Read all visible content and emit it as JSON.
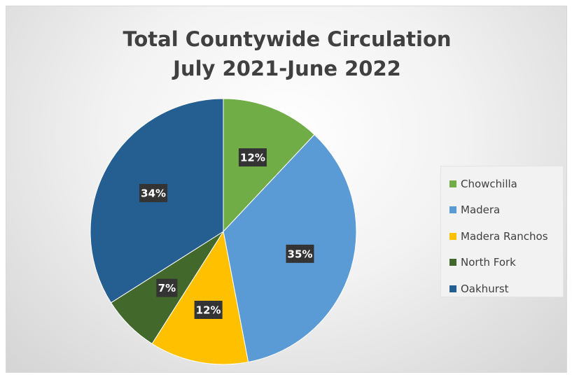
{
  "chart_data": {
    "type": "pie",
    "title": "Total Countywide Circulation",
    "subtitle": "July 2021-June 2022",
    "legend_placement": "right",
    "slices": [
      {
        "name": "Chowchilla",
        "value": 12,
        "label": "12%",
        "color": "#70ad47"
      },
      {
        "name": "Madera",
        "value": 35,
        "label": "35%",
        "color": "#5b9bd5"
      },
      {
        "name": "Madera Ranchos",
        "value": 12,
        "label": "12%",
        "color": "#ffc000"
      },
      {
        "name": "North Fork",
        "value": 7,
        "label": "7%",
        "color": "#43682b"
      },
      {
        "name": "Oakhurst",
        "value": 34,
        "label": "34%",
        "color": "#255e91"
      }
    ]
  }
}
